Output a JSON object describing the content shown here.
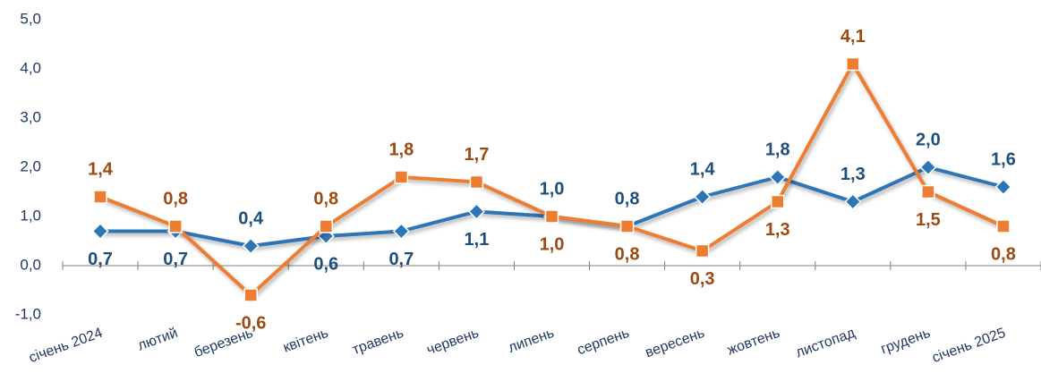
{
  "chart_data": {
    "type": "line",
    "categories": [
      "січень 2024",
      "лютий",
      "березень",
      "квітень",
      "травень",
      "червень",
      "липень",
      "серпень",
      "вересень",
      "жовтень",
      "листопад",
      "грудень",
      "січень 2025"
    ],
    "series": [
      {
        "color": "#2e75b6",
        "values": [
          0.7,
          0.7,
          0.4,
          0.6,
          0.7,
          1.1,
          1.0,
          0.8,
          1.4,
          1.8,
          1.3,
          2.0,
          1.6
        ],
        "value_labels": [
          "0,7",
          "0,7",
          "0,4",
          "0,6",
          "0,7",
          "1,1",
          "1,0",
          "0,8",
          "1,4",
          "1,8",
          "1,3",
          "2,0",
          "1,6"
        ]
      },
      {
        "color": "#ed7d31",
        "values": [
          1.4,
          0.8,
          -0.6,
          0.8,
          1.8,
          1.7,
          1.0,
          0.8,
          0.3,
          1.3,
          4.1,
          1.5,
          0.8
        ],
        "value_labels": [
          "1,4",
          "0,8",
          "-0,6",
          "0,8",
          "1,8",
          "1,7",
          "1,0",
          "0,8",
          "0,3",
          "1,3",
          "4,1",
          "1,5",
          "0,8"
        ]
      }
    ],
    "ylim": [
      -1,
      5
    ],
    "yticks": [
      {
        "value": -1,
        "label": "-1,0"
      },
      {
        "value": 0,
        "label": "0,0"
      },
      {
        "value": 1,
        "label": "1,0"
      },
      {
        "value": 2,
        "label": "2,0"
      },
      {
        "value": 3,
        "label": "3,0"
      },
      {
        "value": 4,
        "label": "4,0"
      },
      {
        "value": 5,
        "label": "5,0"
      }
    ],
    "grid": false
  }
}
